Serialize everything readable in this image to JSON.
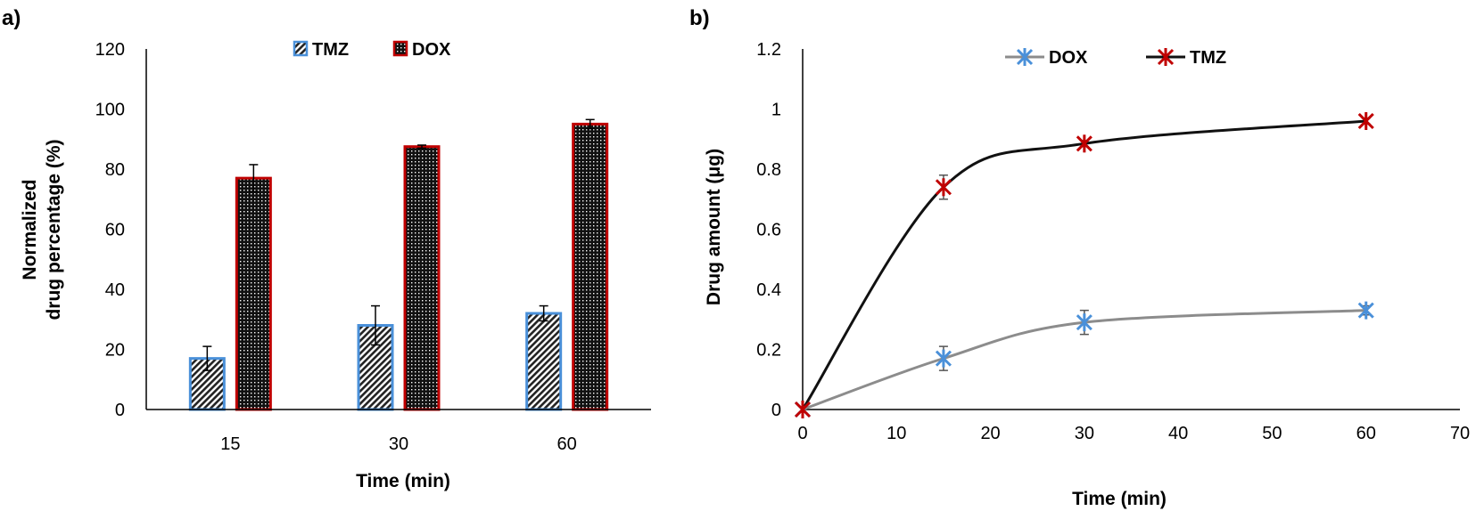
{
  "panels": {
    "a": {
      "label": "a)"
    },
    "b": {
      "label": "b)"
    }
  },
  "chart_data": [
    {
      "type": "bar",
      "categories": [
        "15",
        "30",
        "60"
      ],
      "xlabel": "Time (min)",
      "ylabel_lines": [
        "Normalized",
        "drug percentage (%)"
      ],
      "ylim": [
        0,
        120
      ],
      "yticks": [
        0,
        20,
        40,
        60,
        80,
        100,
        120
      ],
      "legend_placement": "top-center",
      "series": [
        {
          "name": "TMZ",
          "values": [
            17,
            28,
            32
          ],
          "errors": [
            4,
            6.5,
            2.5
          ],
          "border_color": "#4a90d9",
          "pattern": "diagonal-hatch"
        },
        {
          "name": "DOX",
          "values": [
            77,
            87.5,
            95
          ],
          "errors": [
            4.5,
            0.5,
            1.5
          ],
          "border_color": "#c00000",
          "pattern": "dotted"
        }
      ]
    },
    {
      "type": "line",
      "x": [
        0,
        15,
        30,
        60
      ],
      "xlabel": "Time (min)",
      "ylabel": "Drug amount (μg)",
      "xlim": [
        0,
        70
      ],
      "ylim": [
        0,
        1.2
      ],
      "xticks": [
        0,
        10,
        20,
        30,
        40,
        50,
        60,
        70
      ],
      "yticks": [
        "0",
        "0.2",
        "0.4",
        "0.6",
        "0.8",
        "1",
        "1.2"
      ],
      "legend_placement": "top-center",
      "series": [
        {
          "name": "DOX",
          "values": [
            0,
            0.17,
            0.29,
            0.33
          ],
          "errors": [
            0,
            0.04,
            0.04,
            0.015
          ],
          "line_color": "#8c8c8c",
          "marker_color": "#4a90d9"
        },
        {
          "name": "TMZ",
          "values": [
            0,
            0.74,
            0.885,
            0.96
          ],
          "errors": [
            0,
            0.04,
            0.01,
            0.01
          ],
          "line_color": "#111111",
          "marker_color": "#c00000"
        }
      ]
    }
  ]
}
